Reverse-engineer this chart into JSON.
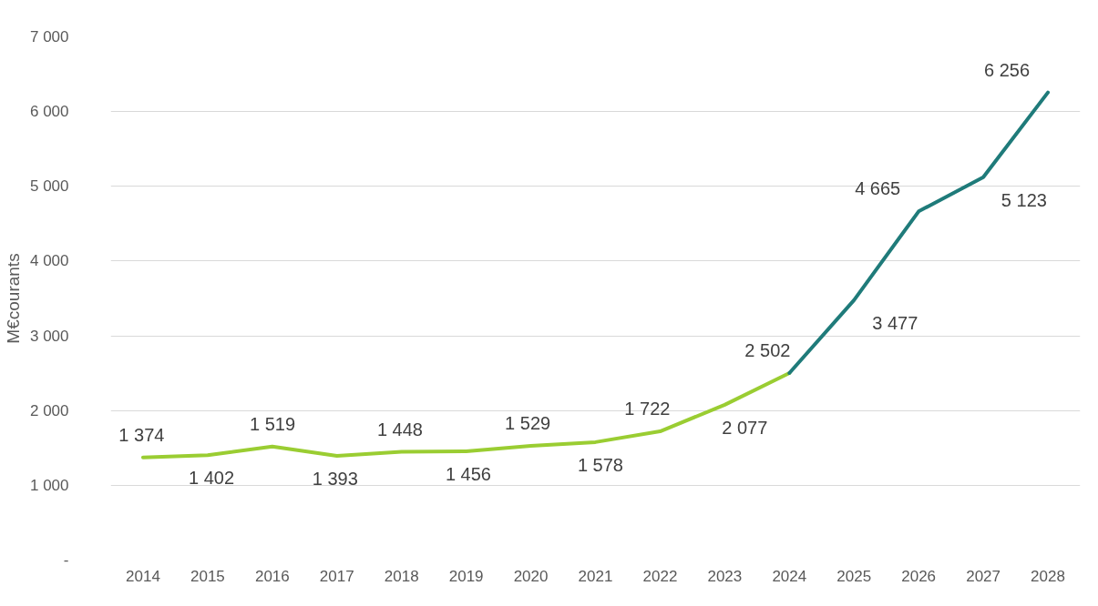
{
  "chart_data": {
    "type": "line",
    "ylabel": "M€courants",
    "categories": [
      "2014",
      "2015",
      "2016",
      "2017",
      "2018",
      "2019",
      "2020",
      "2021",
      "2022",
      "2023",
      "2024",
      "2025",
      "2026",
      "2027",
      "2028"
    ],
    "series": [
      {
        "color": "#9acd32",
        "values": [
          1374,
          1402,
          1519,
          1393,
          1448,
          1456,
          1529,
          1578,
          1722,
          2077,
          2502,
          null,
          null,
          null,
          null
        ],
        "value_labels": [
          "1 374",
          "1 402",
          "1 519",
          "1 393",
          "1 448",
          "1 456",
          "1 529",
          "1 578",
          "1 722",
          "2 077",
          "2 502",
          null,
          null,
          null,
          null
        ]
      },
      {
        "color": "#1f7b7a",
        "values": [
          null,
          null,
          null,
          null,
          null,
          null,
          null,
          null,
          null,
          null,
          2502,
          3477,
          4665,
          5123,
          6256
        ],
        "value_labels": [
          null,
          null,
          null,
          null,
          null,
          null,
          null,
          null,
          null,
          null,
          null,
          "3 477",
          "4 665",
          "5 123",
          "6 256"
        ]
      }
    ],
    "ylim": [
      0,
      7000
    ],
    "yticks": [
      {
        "value": 0,
        "label": "-"
      },
      {
        "value": 1000,
        "label": "1 000"
      },
      {
        "value": 2000,
        "label": "2 000"
      },
      {
        "value": 3000,
        "label": "3 000"
      },
      {
        "value": 4000,
        "label": "4 000"
      },
      {
        "value": 5000,
        "label": "5 000"
      },
      {
        "value": 6000,
        "label": "6 000"
      },
      {
        "value": 7000,
        "label": "7 000"
      }
    ],
    "grid": "y",
    "marker": "none",
    "line_style": "solid"
  }
}
